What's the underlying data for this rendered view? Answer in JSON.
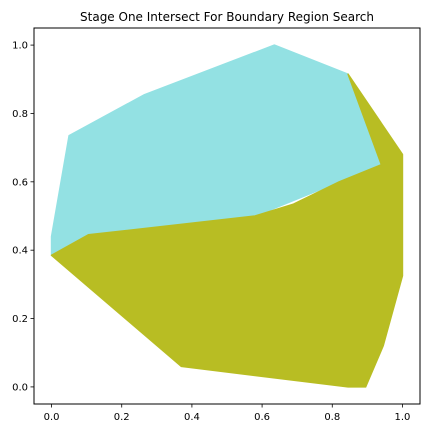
{
  "chart_data": {
    "type": "area",
    "title": "Stage One Intersect For Boundary Region Search",
    "xlabel": "",
    "ylabel": "",
    "xlim": [
      -0.05,
      1.05
    ],
    "ylim": [
      -0.05,
      1.05
    ],
    "x_ticks": [
      0.0,
      0.2,
      0.4,
      0.6,
      0.8,
      1.0
    ],
    "x_tick_labels": [
      "0.0",
      "0.2",
      "0.4",
      "0.6",
      "0.8",
      "1.0"
    ],
    "y_ticks": [
      0.0,
      0.2,
      0.4,
      0.6,
      0.8,
      1.0
    ],
    "y_tick_labels": [
      "0.0",
      "0.2",
      "0.4",
      "0.6",
      "0.8",
      "1.0"
    ],
    "grid": false,
    "legend": false,
    "series": [
      {
        "color": "#93e1e3",
        "points": [
          [
            0.0,
            0.385
          ],
          [
            0.0,
            0.44
          ],
          [
            0.05,
            0.735
          ],
          [
            0.265,
            0.855
          ],
          [
            0.635,
            1.0
          ],
          [
            0.845,
            0.915
          ],
          [
            0.94,
            0.65
          ],
          [
            0.82,
            0.6
          ],
          [
            0.58,
            0.5
          ],
          [
            0.105,
            0.445
          ]
        ]
      },
      {
        "color": "#b8bd23",
        "points": [
          [
            0.0,
            0.385
          ],
          [
            0.105,
            0.445
          ],
          [
            0.58,
            0.5
          ],
          [
            0.69,
            0.535
          ],
          [
            0.82,
            0.6
          ],
          [
            0.94,
            0.65
          ],
          [
            0.845,
            0.915
          ],
          [
            1.0,
            0.68
          ],
          [
            1.0,
            0.325
          ],
          [
            0.945,
            0.12
          ],
          [
            0.895,
            0.0
          ],
          [
            0.845,
            0.0
          ],
          [
            0.37,
            0.06
          ]
        ]
      }
    ]
  }
}
